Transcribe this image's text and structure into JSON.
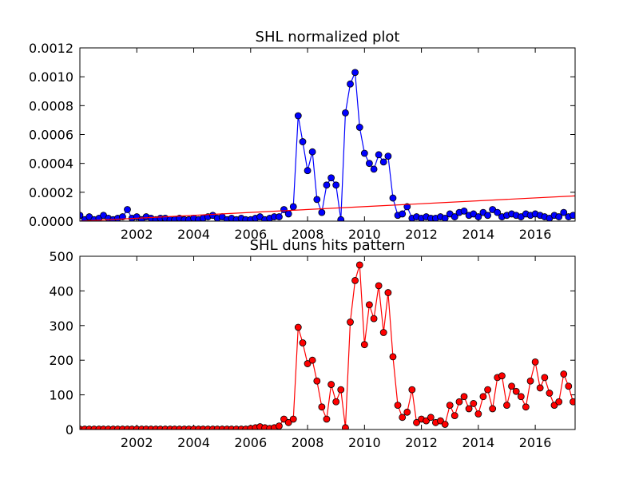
{
  "chart_data": [
    {
      "type": "line",
      "title": "SHL normalized plot",
      "x": [
        2000.0,
        2000.17,
        2000.33,
        2000.5,
        2000.67,
        2000.83,
        2001.0,
        2001.17,
        2001.33,
        2001.5,
        2001.67,
        2001.83,
        2002.0,
        2002.17,
        2002.33,
        2002.5,
        2002.67,
        2002.83,
        2003.0,
        2003.17,
        2003.33,
        2003.5,
        2003.67,
        2003.83,
        2004.0,
        2004.17,
        2004.33,
        2004.5,
        2004.67,
        2004.83,
        2005.0,
        2005.17,
        2005.33,
        2005.5,
        2005.67,
        2005.83,
        2006.0,
        2006.17,
        2006.33,
        2006.5,
        2006.67,
        2006.83,
        2007.0,
        2007.17,
        2007.33,
        2007.5,
        2007.67,
        2007.83,
        2008.0,
        2008.17,
        2008.33,
        2008.5,
        2008.67,
        2008.83,
        2009.0,
        2009.17,
        2009.33,
        2009.5,
        2009.67,
        2009.83,
        2010.0,
        2010.17,
        2010.33,
        2010.5,
        2010.67,
        2010.83,
        2011.0,
        2011.17,
        2011.33,
        2011.5,
        2011.67,
        2011.83,
        2012.0,
        2012.17,
        2012.33,
        2012.5,
        2012.67,
        2012.83,
        2013.0,
        2013.17,
        2013.33,
        2013.5,
        2013.67,
        2013.83,
        2014.0,
        2014.17,
        2014.33,
        2014.5,
        2014.67,
        2014.83,
        2015.0,
        2015.17,
        2015.33,
        2015.5,
        2015.67,
        2015.83,
        2016.0,
        2016.17,
        2016.33,
        2016.5,
        2016.67,
        2016.83,
        2017.0,
        2017.17,
        2017.33
      ],
      "series": [
        {
          "color": "#0000ff",
          "marker": true,
          "values": [
            4e-05,
            1e-05,
            3e-05,
            1e-05,
            2e-05,
            4e-05,
            2e-05,
            1e-05,
            2e-05,
            3e-05,
            8e-05,
            2e-05,
            3e-05,
            1e-05,
            3e-05,
            2e-05,
            1e-05,
            2e-05,
            2e-05,
            1e-05,
            1e-05,
            2e-05,
            1e-05,
            1e-05,
            2e-05,
            1e-05,
            2e-05,
            3e-05,
            4e-05,
            2e-05,
            3e-05,
            1e-05,
            2e-05,
            1e-05,
            2e-05,
            1e-05,
            1e-05,
            2e-05,
            3e-05,
            1e-05,
            2e-05,
            3e-05,
            3e-05,
            8e-05,
            5e-05,
            0.0001,
            0.00073,
            0.00055,
            0.00035,
            0.00048,
            0.00015,
            6e-05,
            0.00025,
            0.0003,
            0.00025,
            1e-05,
            0.00075,
            0.00095,
            0.00103,
            0.00065,
            0.00047,
            0.0004,
            0.00036,
            0.00046,
            0.00041,
            0.00045,
            0.00016,
            4e-05,
            5e-05,
            0.0001,
            2e-05,
            3e-05,
            2e-05,
            3e-05,
            2e-05,
            2e-05,
            3e-05,
            2e-05,
            5e-05,
            3e-05,
            6e-05,
            7e-05,
            4e-05,
            5e-05,
            3e-05,
            6e-05,
            4e-05,
            8e-05,
            6e-05,
            3e-05,
            4e-05,
            5e-05,
            4e-05,
            3e-05,
            5e-05,
            4e-05,
            5e-05,
            4e-05,
            3e-05,
            2e-05,
            4e-05,
            3e-05,
            6e-05,
            3e-05,
            4e-05
          ]
        },
        {
          "color": "#ff0000",
          "marker": false,
          "x": [
            2000,
            2017.4
          ],
          "values": [
            0.0,
            0.000175
          ]
        }
      ],
      "xlim": [
        2000,
        2017.4
      ],
      "ylim": [
        0,
        0.0012
      ],
      "xticks": [
        2002,
        2004,
        2006,
        2008,
        2010,
        2012,
        2014,
        2016
      ],
      "yticks": [
        {
          "value": 0,
          "label": "0.0000"
        },
        {
          "value": 0.0002,
          "label": "0.0002"
        },
        {
          "value": 0.0004,
          "label": "0.0004"
        },
        {
          "value": 0.0006,
          "label": "0.0006"
        },
        {
          "value": 0.0008,
          "label": "0.0008"
        },
        {
          "value": 0.001,
          "label": "0.0010"
        },
        {
          "value": 0.0012,
          "label": "0.0012"
        }
      ]
    },
    {
      "type": "line",
      "title": "SHL duns hits pattern",
      "x": [
        2000.0,
        2000.17,
        2000.33,
        2000.5,
        2000.67,
        2000.83,
        2001.0,
        2001.17,
        2001.33,
        2001.5,
        2001.67,
        2001.83,
        2002.0,
        2002.17,
        2002.33,
        2002.5,
        2002.67,
        2002.83,
        2003.0,
        2003.17,
        2003.33,
        2003.5,
        2003.67,
        2003.83,
        2004.0,
        2004.17,
        2004.33,
        2004.5,
        2004.67,
        2004.83,
        2005.0,
        2005.17,
        2005.33,
        2005.5,
        2005.67,
        2005.83,
        2006.0,
        2006.17,
        2006.33,
        2006.5,
        2006.67,
        2006.83,
        2007.0,
        2007.17,
        2007.33,
        2007.5,
        2007.67,
        2007.83,
        2008.0,
        2008.17,
        2008.33,
        2008.5,
        2008.67,
        2008.83,
        2009.0,
        2009.17,
        2009.33,
        2009.5,
        2009.67,
        2009.83,
        2010.0,
        2010.17,
        2010.33,
        2010.5,
        2010.67,
        2010.83,
        2011.0,
        2011.17,
        2011.33,
        2011.5,
        2011.67,
        2011.83,
        2012.0,
        2012.17,
        2012.33,
        2012.5,
        2012.67,
        2012.83,
        2013.0,
        2013.17,
        2013.33,
        2013.5,
        2013.67,
        2013.83,
        2014.0,
        2014.17,
        2014.33,
        2014.5,
        2014.67,
        2014.83,
        2015.0,
        2015.17,
        2015.33,
        2015.5,
        2015.67,
        2015.83,
        2016.0,
        2016.17,
        2016.33,
        2016.5,
        2016.67,
        2016.83,
        2017.0,
        2017.17,
        2017.33
      ],
      "series": [
        {
          "color": "#ff0000",
          "marker": true,
          "values": [
            1,
            1,
            1,
            1,
            1,
            1,
            1,
            1,
            1,
            1,
            1,
            1,
            1,
            1,
            1,
            1,
            1,
            1,
            1,
            1,
            1,
            1,
            1,
            1,
            1,
            1,
            1,
            1,
            1,
            1,
            1,
            1,
            1,
            1,
            1,
            1,
            3,
            5,
            8,
            5,
            3,
            5,
            10,
            30,
            20,
            30,
            295,
            250,
            190,
            200,
            140,
            65,
            30,
            130,
            80,
            115,
            5,
            310,
            430,
            475,
            245,
            360,
            320,
            415,
            280,
            395,
            210,
            70,
            35,
            50,
            115,
            20,
            30,
            25,
            35,
            20,
            25,
            15,
            70,
            40,
            80,
            95,
            60,
            75,
            45,
            95,
            115,
            60,
            150,
            155,
            70,
            125,
            110,
            95,
            65,
            140,
            195,
            120,
            150,
            105,
            70,
            80,
            160,
            125,
            80
          ]
        }
      ],
      "xlim": [
        2000,
        2017.4
      ],
      "ylim": [
        0,
        500
      ],
      "xticks": [
        2002,
        2004,
        2006,
        2008,
        2010,
        2012,
        2014,
        2016
      ],
      "yticks": [
        0,
        100,
        200,
        300,
        400,
        500
      ]
    }
  ]
}
